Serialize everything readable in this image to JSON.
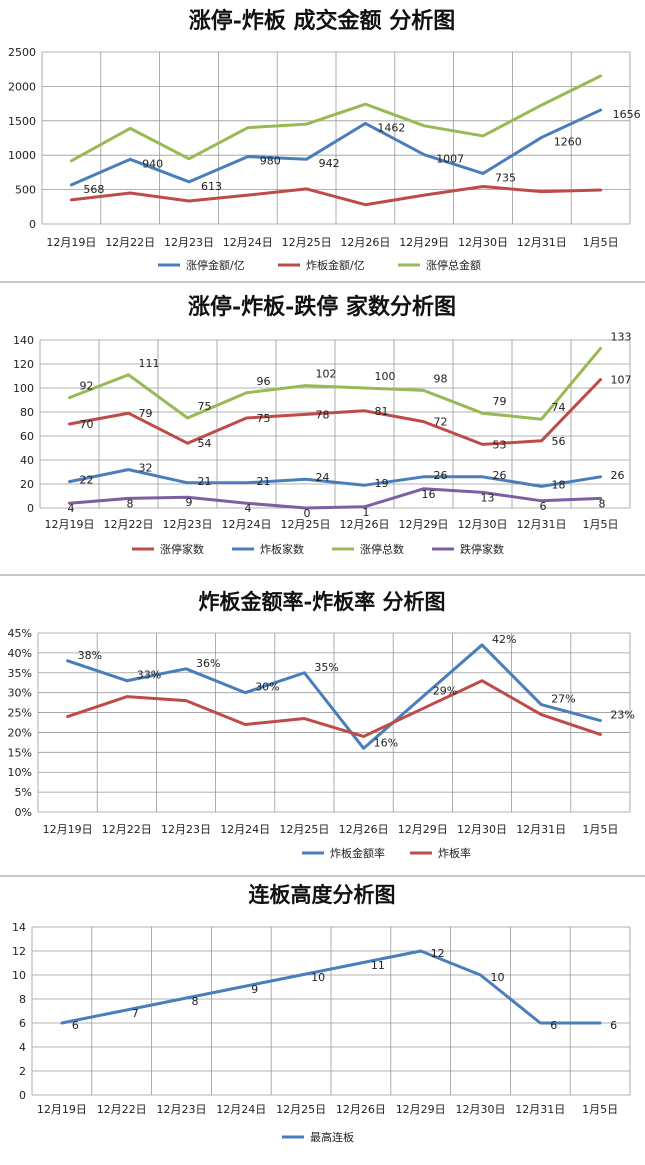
{
  "chart_data": [
    {
      "type": "line",
      "title": "涨停-炸板 成交金额 分析图",
      "categories": [
        "12月19日",
        "12月22日",
        "12月23日",
        "12月24日",
        "12月25日",
        "12月26日",
        "12月29日",
        "12月30日",
        "12月31日",
        "1月5日"
      ],
      "ylim": [
        0,
        2500
      ],
      "yticks": [
        "0",
        "500",
        "1000",
        "1500",
        "2000",
        "2500"
      ],
      "grid": true,
      "legend": "bottom",
      "series": [
        {
          "name": "涨停金额/亿",
          "color": "#4a7ebb",
          "values": [
            568,
            940,
            613,
            980,
            942,
            1462,
            1007,
            735,
            1260,
            1656
          ],
          "labels": [
            "568",
            "940",
            "613",
            "980",
            "942",
            "1462",
            "1007",
            "735",
            "1260",
            "1656"
          ]
        },
        {
          "name": "炸板金额/亿",
          "color": "#be4b48",
          "values": [
            350,
            450,
            335,
            420,
            510,
            280,
            420,
            545,
            470,
            495
          ]
        },
        {
          "name": "涨停总金额",
          "color": "#98b954",
          "values": [
            918,
            1390,
            948,
            1400,
            1452,
            1742,
            1427,
            1280,
            1730,
            2151
          ]
        }
      ]
    },
    {
      "type": "line",
      "title": "涨停-炸板-跌停 家数分析图",
      "categories": [
        "12月19日",
        "12月22日",
        "12月23日",
        "12月24日",
        "12月25日",
        "12月26日",
        "12月29日",
        "12月30日",
        "12月31日",
        "1月5日"
      ],
      "ylim": [
        0,
        140
      ],
      "yticks": [
        "0",
        "20",
        "40",
        "60",
        "80",
        "100",
        "120",
        "140"
      ],
      "grid": true,
      "legend": "bottom",
      "series": [
        {
          "name": "涨停家数",
          "color": "#be4b48",
          "values": [
            70,
            79,
            54,
            75,
            78,
            81,
            72,
            53,
            56,
            107
          ],
          "labels": [
            "70",
            "79",
            "54",
            "75",
            "78",
            "81",
            "72",
            "53",
            "56",
            "107"
          ]
        },
        {
          "name": "炸板家数",
          "color": "#4a7ebb",
          "values": [
            22,
            32,
            21,
            21,
            24,
            19,
            26,
            26,
            18,
            26
          ],
          "labels": [
            "22",
            "32",
            "21",
            "21",
            "24",
            "19",
            "26",
            "26",
            "18",
            "26"
          ]
        },
        {
          "name": "涨停总数",
          "color": "#98b954",
          "values": [
            92,
            111,
            75,
            96,
            102,
            100,
            98,
            79,
            74,
            133
          ],
          "labels": [
            "92",
            "111",
            "75",
            "96",
            "102",
            "100",
            "98",
            "79",
            "74",
            "133"
          ]
        },
        {
          "name": "跌停家数",
          "color": "#7d5fa0",
          "values": [
            4,
            8,
            9,
            4,
            0,
            1,
            16,
            13,
            6,
            8
          ],
          "labels": [
            "4",
            "8",
            "9",
            "4",
            "0",
            "1",
            "16",
            "13",
            "6",
            "8"
          ]
        }
      ]
    },
    {
      "type": "line",
      "title": "炸板金额率-炸板率 分析图",
      "categories": [
        "12月19日",
        "12月22日",
        "12月23日",
        "12月24日",
        "12月25日",
        "12月26日",
        "12月29日",
        "12月30日",
        "12月31日",
        "1月5日"
      ],
      "ylim": [
        0,
        45
      ],
      "yticks": [
        "0%",
        "5%",
        "10%",
        "15%",
        "20%",
        "25%",
        "30%",
        "35%",
        "40%",
        "45%"
      ],
      "grid": true,
      "legend": "bottom",
      "series": [
        {
          "name": "炸板金额率",
          "color": "#4a7ebb",
          "values": [
            38,
            33,
            36,
            30,
            35,
            16,
            29,
            42,
            27,
            23
          ],
          "labels": [
            "38%",
            "33%",
            "36%",
            "30%",
            "35%",
            "16%",
            "29%",
            "42%",
            "27%",
            "23%"
          ]
        },
        {
          "name": "炸板率",
          "color": "#be4b48",
          "values": [
            24,
            29,
            28,
            22,
            23.5,
            19,
            26,
            33,
            24.5,
            19.5
          ]
        }
      ]
    },
    {
      "type": "line",
      "title": "连板高度分析图",
      "categories": [
        "12月19日",
        "12月22日",
        "12月23日",
        "12月24日",
        "12月25日",
        "12月26日",
        "12月29日",
        "12月30日",
        "12月31日",
        "1月5日"
      ],
      "ylim": [
        0,
        14
      ],
      "yticks": [
        "0",
        "2",
        "4",
        "6",
        "8",
        "10",
        "12",
        "14"
      ],
      "grid": true,
      "legend": "bottom",
      "series": [
        {
          "name": "最高连板",
          "color": "#4a7ebb",
          "values": [
            6,
            7,
            8,
            9,
            10,
            11,
            12,
            10,
            6,
            6
          ],
          "labels": [
            "6",
            "7",
            "8",
            "9",
            "10",
            "11",
            "12",
            "10",
            "6",
            "6"
          ]
        }
      ]
    }
  ]
}
